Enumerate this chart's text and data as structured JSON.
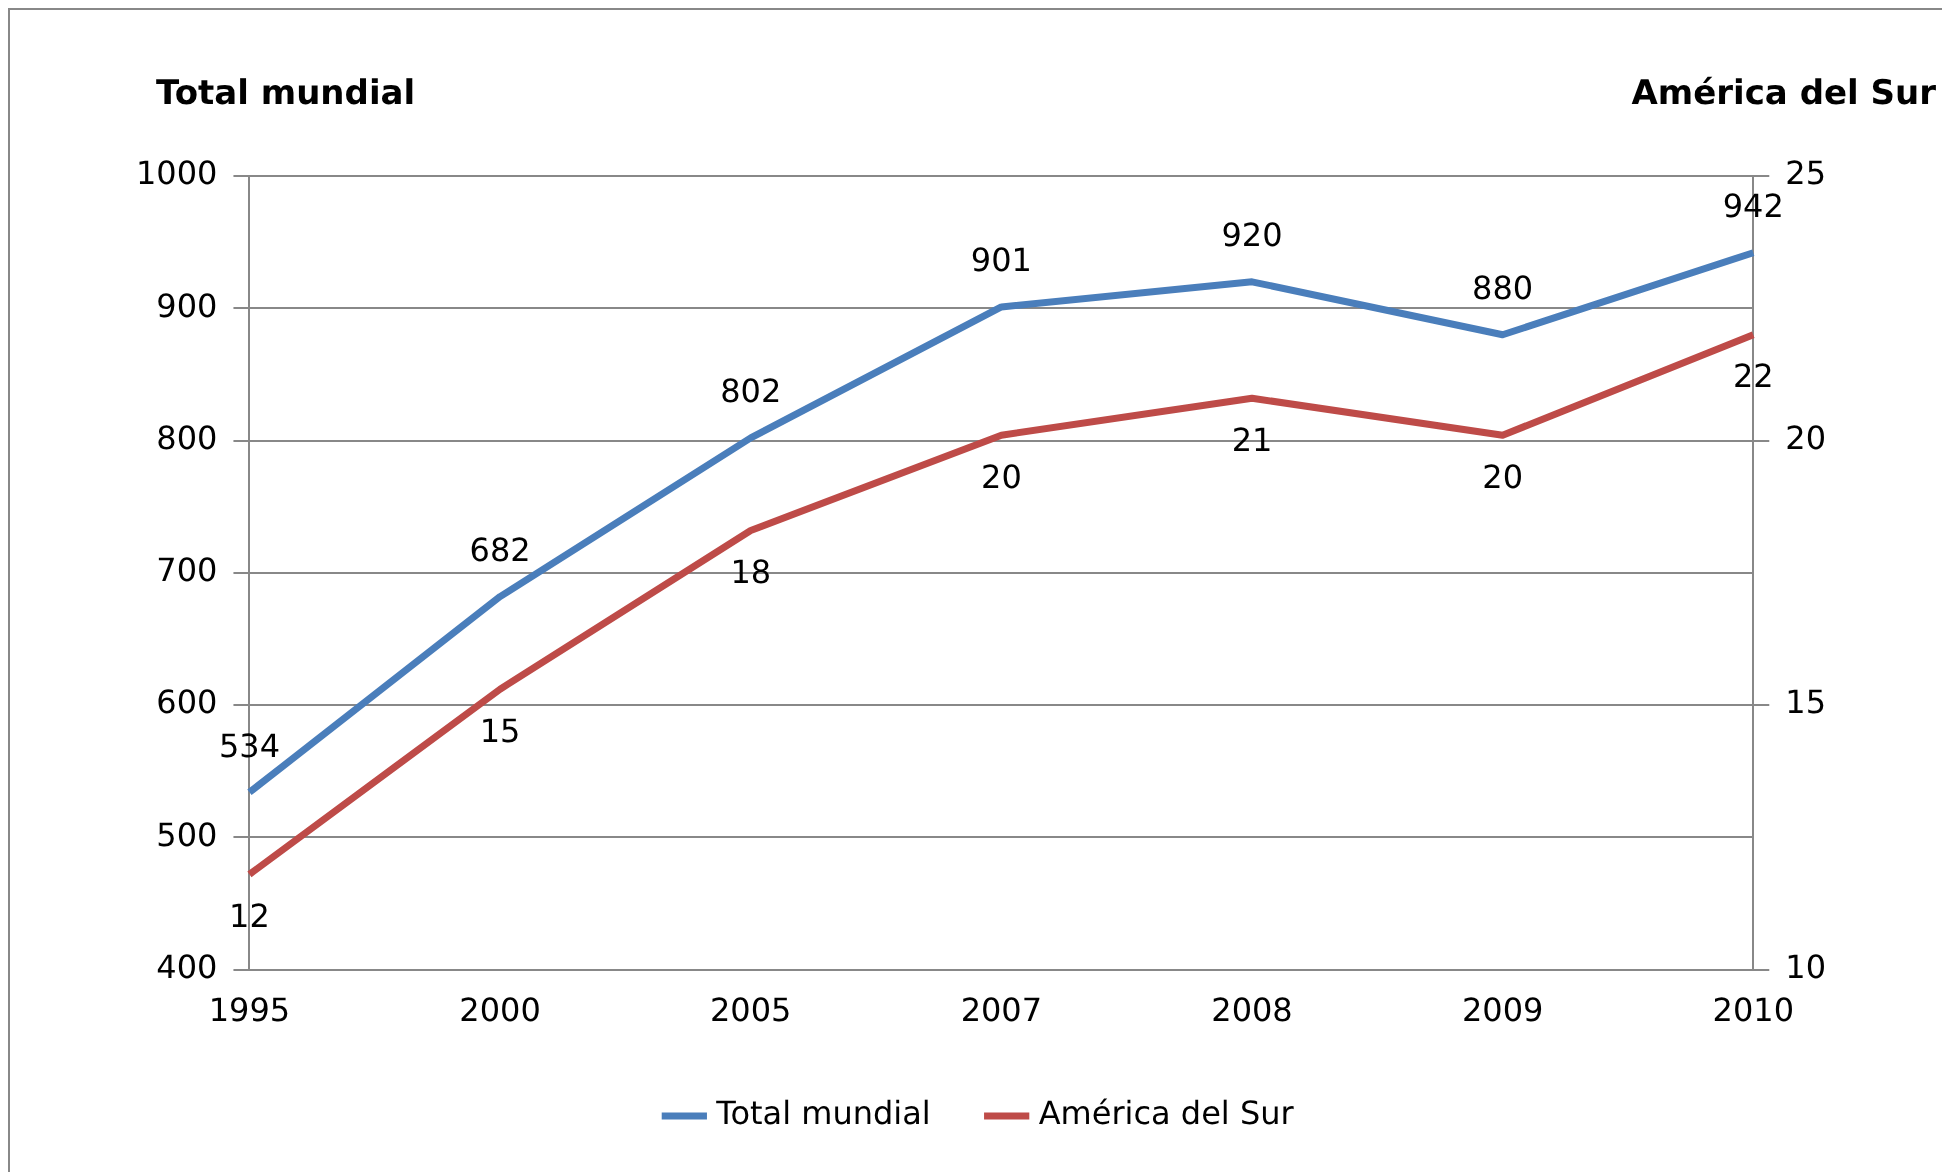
{
  "chart_data": {
    "type": "line",
    "ylabel": "Total mundial",
    "y2label": "América del Sur",
    "categories": [
      "1995",
      "2000",
      "2005",
      "2007",
      "2008",
      "2009",
      "2010"
    ],
    "series": [
      {
        "name": "Total mundial",
        "color": "#4a7ebb",
        "values": [
          534,
          682,
          802,
          901,
          920,
          880,
          942
        ],
        "value_labels": [
          "534",
          "682",
          "802",
          "901",
          "920",
          "880",
          "942"
        ]
      },
      {
        "name": "América del Sur",
        "color": "#be4b48",
        "axis": "y2",
        "values": [
          11.8,
          15.3,
          18.3,
          20.1,
          20.8,
          20.1,
          22.0
        ],
        "value_labels": [
          "12",
          "15",
          "18",
          "20",
          "21",
          "20",
          "22"
        ]
      }
    ],
    "ylim": [
      400,
      1000
    ],
    "yticks": [
      400,
      500,
      600,
      700,
      800,
      900,
      1000
    ],
    "y2lim": [
      10,
      25
    ],
    "y2ticks": [
      10,
      15,
      20,
      25
    ],
    "grid": "y",
    "legend": "bottom",
    "marker": "none",
    "line_style": "solid"
  }
}
